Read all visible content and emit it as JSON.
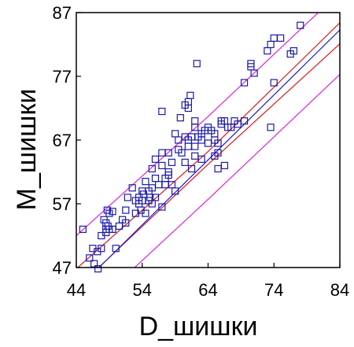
{
  "chart_data": {
    "type": "scatter",
    "title": "",
    "xlabel": "D_шишки",
    "ylabel": "M_шишки",
    "xlim": [
      44,
      84
    ],
    "ylim": [
      47,
      87
    ],
    "xticks": [
      "44",
      "54",
      "64",
      "74",
      "84"
    ],
    "yticks": [
      "47",
      "57",
      "67",
      "77",
      "87"
    ],
    "grid": false,
    "colors": {
      "points": "#1a1aa8",
      "fit": "#1a1acc",
      "confidence": "#e01818",
      "prediction": "#e020e0",
      "frame": "#000000"
    },
    "fit_line": {
      "slope": 1.02,
      "intercept": -1.4
    },
    "confidence_band": [
      {
        "x": 44,
        "lower": 43.7,
        "upper": 46.8
      },
      {
        "x": 64,
        "lower": 63.2,
        "upper": 65.2
      },
      {
        "x": 84,
        "lower": 82.1,
        "upper": 85.4
      }
    ],
    "prediction_band": [
      {
        "x": 44,
        "lower": 38.5,
        "upper": 52.0
      },
      {
        "x": 64,
        "lower": 57.7,
        "upper": 70.7
      },
      {
        "x": 84,
        "lower": 77.3,
        "upper": 90.2
      }
    ],
    "points": [
      [
        45,
        53
      ],
      [
        46,
        48.5
      ],
      [
        46.5,
        50
      ],
      [
        46.7,
        47.6
      ],
      [
        47.2,
        49.5
      ],
      [
        47.3,
        46.8
      ],
      [
        47.8,
        50
      ],
      [
        47.8,
        52
      ],
      [
        48.2,
        54.5
      ],
      [
        48.5,
        54
      ],
      [
        48.8,
        53.5
      ],
      [
        48.5,
        52.5
      ],
      [
        49,
        53
      ],
      [
        49.5,
        53
      ],
      [
        49,
        55.5
      ],
      [
        49.5,
        55.8
      ],
      [
        48.5,
        53
      ],
      [
        48.7,
        56
      ],
      [
        50,
        50
      ],
      [
        50.5,
        53.5
      ],
      [
        51,
        54.5
      ],
      [
        51.5,
        54
      ],
      [
        51.5,
        56
      ],
      [
        51.8,
        58
      ],
      [
        52.5,
        59.5
      ],
      [
        53,
        57.5
      ],
      [
        53,
        55.5
      ],
      [
        53.5,
        57
      ],
      [
        53.5,
        58
      ],
      [
        53.8,
        56
      ],
      [
        54,
        57.5
      ],
      [
        54,
        59
      ],
      [
        54.2,
        58.5
      ],
      [
        54.5,
        60.5
      ],
      [
        54.5,
        55.5
      ],
      [
        55,
        57.5
      ],
      [
        55,
        59
      ],
      [
        55.2,
        58
      ],
      [
        55.5,
        57
      ],
      [
        55.5,
        59.5
      ],
      [
        55.5,
        62.5
      ],
      [
        56,
        58
      ],
      [
        56,
        61
      ],
      [
        56,
        64
      ],
      [
        56.5,
        60
      ],
      [
        57,
        63
      ],
      [
        57,
        65
      ],
      [
        57,
        56.5
      ],
      [
        57.5,
        61
      ],
      [
        57.5,
        60
      ],
      [
        57,
        71.5
      ],
      [
        58,
        62
      ],
      [
        58,
        61.5
      ],
      [
        58,
        65
      ],
      [
        58.5,
        60
      ],
      [
        58.5,
        63.5
      ],
      [
        59,
        59
      ],
      [
        59,
        68
      ],
      [
        59.5,
        67
      ],
      [
        59.5,
        65.5
      ],
      [
        59.8,
        70.5
      ],
      [
        60,
        65
      ],
      [
        60.5,
        72.5
      ],
      [
        60.5,
        63.5
      ],
      [
        60.5,
        67.5
      ],
      [
        61,
        67
      ],
      [
        61,
        66
      ],
      [
        61,
        73
      ],
      [
        61,
        72
      ],
      [
        61.3,
        74
      ],
      [
        61.5,
        67.5
      ],
      [
        61.5,
        62.5
      ],
      [
        62,
        70
      ],
      [
        62,
        69
      ],
      [
        62,
        66
      ],
      [
        62,
        64.5
      ],
      [
        62.3,
        79
      ],
      [
        62.5,
        67.5
      ],
      [
        63,
        68
      ],
      [
        63,
        64
      ],
      [
        63,
        67
      ],
      [
        63.5,
        68.5
      ],
      [
        64,
        66.5
      ],
      [
        64,
        69
      ],
      [
        64.5,
        68.5
      ],
      [
        65,
        68
      ],
      [
        65,
        67
      ],
      [
        65,
        64.5
      ],
      [
        65.5,
        66.5
      ],
      [
        65.5,
        65
      ],
      [
        65.5,
        62.5
      ],
      [
        66,
        69.5
      ],
      [
        66,
        70
      ],
      [
        66.5,
        63
      ],
      [
        66.5,
        70
      ],
      [
        67,
        69
      ],
      [
        67.5,
        69
      ],
      [
        68,
        70
      ],
      [
        68.5,
        69.5
      ],
      [
        69.5,
        70
      ],
      [
        69.5,
        76
      ],
      [
        70.5,
        79
      ],
      [
        70.5,
        78.5
      ],
      [
        71,
        77.5
      ],
      [
        73,
        81
      ],
      [
        73.5,
        69
      ],
      [
        73.5,
        82
      ],
      [
        74,
        76
      ],
      [
        74,
        83
      ],
      [
        75,
        83
      ],
      [
        76.5,
        80.5
      ],
      [
        77,
        81
      ],
      [
        78,
        85
      ]
    ]
  }
}
